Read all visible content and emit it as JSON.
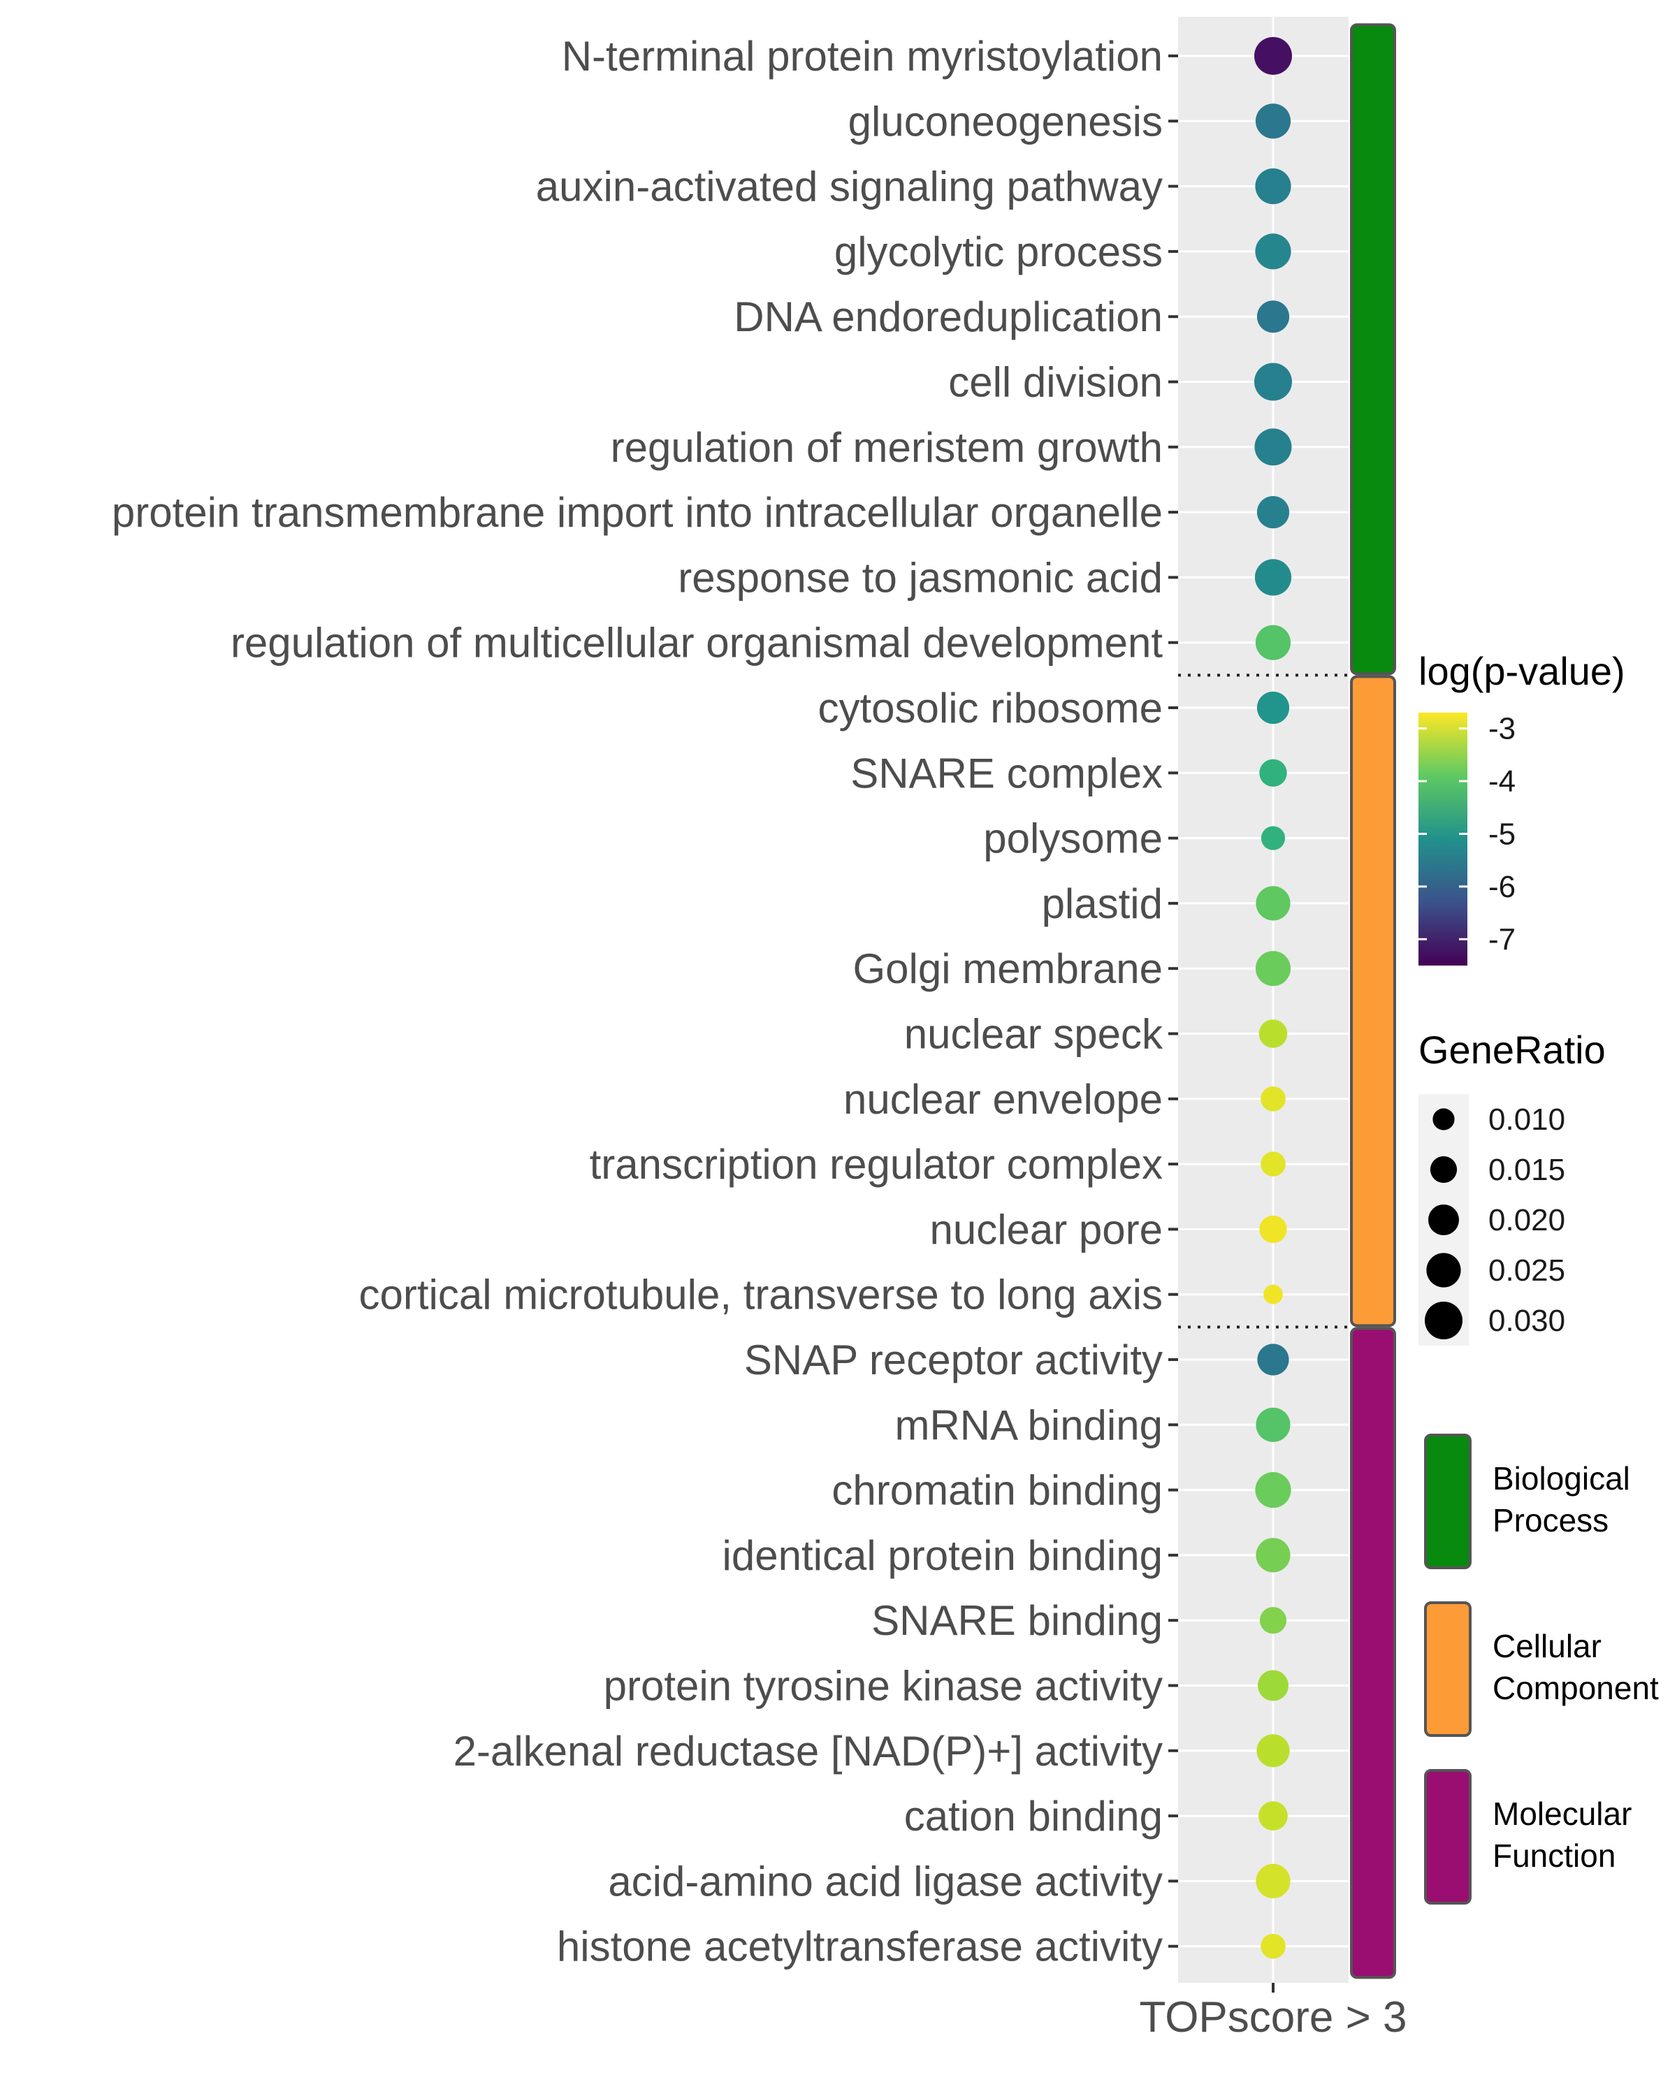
{
  "chart_data": {
    "type": "scatter",
    "xlabel": "TOPscore > 3",
    "terms": [
      {
        "label": "N-terminal protein myristoylation",
        "category": "Biological Process",
        "log_p": -7.3,
        "gene_ratio": 0.03
      },
      {
        "label": "gluconeogenesis",
        "category": "Biological Process",
        "log_p": -5.6,
        "gene_ratio": 0.026
      },
      {
        "label": "auxin-activated signaling pathway",
        "category": "Biological Process",
        "log_p": -5.4,
        "gene_ratio": 0.027
      },
      {
        "label": "glycolytic process",
        "category": "Biological Process",
        "log_p": -5.3,
        "gene_ratio": 0.027
      },
      {
        "label": "DNA endoreduplication",
        "category": "Biological Process",
        "log_p": -5.6,
        "gene_ratio": 0.022
      },
      {
        "label": "cell division",
        "category": "Biological Process",
        "log_p": -5.4,
        "gene_ratio": 0.03
      },
      {
        "label": "regulation of meristem growth",
        "category": "Biological Process",
        "log_p": -5.4,
        "gene_ratio": 0.029
      },
      {
        "label": "protein transmembrane import into intracellular organelle",
        "category": "Biological Process",
        "log_p": -5.4,
        "gene_ratio": 0.022
      },
      {
        "label": "response to jasmonic acid",
        "category": "Biological Process",
        "log_p": -5.2,
        "gene_ratio": 0.028
      },
      {
        "label": "regulation of multicellular organismal development",
        "category": "Biological Process",
        "log_p": -4.0,
        "gene_ratio": 0.026
      },
      {
        "label": "cytosolic ribosome",
        "category": "Cellular Component",
        "log_p": -5.0,
        "gene_ratio": 0.022
      },
      {
        "label": "SNARE complex",
        "category": "Cellular Component",
        "log_p": -4.4,
        "gene_ratio": 0.016
      },
      {
        "label": "polysome",
        "category": "Cellular Component",
        "log_p": -4.4,
        "gene_ratio": 0.012
      },
      {
        "label": "plastid",
        "category": "Cellular Component",
        "log_p": -3.9,
        "gene_ratio": 0.025
      },
      {
        "label": "Golgi membrane",
        "category": "Cellular Component",
        "log_p": -3.8,
        "gene_ratio": 0.026
      },
      {
        "label": "nuclear speck",
        "category": "Cellular Component",
        "log_p": -3.2,
        "gene_ratio": 0.017
      },
      {
        "label": "nuclear envelope",
        "category": "Cellular Component",
        "log_p": -2.9,
        "gene_ratio": 0.013
      },
      {
        "label": "transcription regulator complex",
        "category": "Cellular Component",
        "log_p": -2.9,
        "gene_ratio": 0.013
      },
      {
        "label": "nuclear pore",
        "category": "Cellular Component",
        "log_p": -2.8,
        "gene_ratio": 0.016
      },
      {
        "label": "cortical microtubule, transverse to long axis",
        "category": "Cellular Component",
        "log_p": -2.8,
        "gene_ratio": 0.008
      },
      {
        "label": "SNAP receptor activity",
        "category": "Molecular Function",
        "log_p": -5.6,
        "gene_ratio": 0.021
      },
      {
        "label": "mRNA binding",
        "category": "Molecular Function",
        "log_p": -4.0,
        "gene_ratio": 0.025
      },
      {
        "label": "chromatin binding",
        "category": "Molecular Function",
        "log_p": -3.8,
        "gene_ratio": 0.027
      },
      {
        "label": "identical protein binding",
        "category": "Molecular Function",
        "log_p": -3.7,
        "gene_ratio": 0.025
      },
      {
        "label": "SNARE binding",
        "category": "Molecular Function",
        "log_p": -3.6,
        "gene_ratio": 0.015
      },
      {
        "label": "protein tyrosine kinase activity",
        "category": "Molecular Function",
        "log_p": -3.4,
        "gene_ratio": 0.02
      },
      {
        "label": "2-alkenal reductase [NAD(P)+] activity",
        "category": "Molecular Function",
        "log_p": -3.2,
        "gene_ratio": 0.023
      },
      {
        "label": "cation binding",
        "category": "Molecular Function",
        "log_p": -3.1,
        "gene_ratio": 0.018
      },
      {
        "label": "acid-amino acid ligase activity",
        "category": "Molecular Function",
        "log_p": -3.0,
        "gene_ratio": 0.025
      },
      {
        "label": "histone acetyltransferase activity",
        "category": "Molecular Function",
        "log_p": -2.9,
        "gene_ratio": 0.013
      }
    ],
    "color_legend": {
      "title": "log(p-value)",
      "ticks": [
        -3,
        -4,
        -5,
        -6,
        -7
      ],
      "tick_labels": [
        "-3",
        "-4",
        "-5",
        "-6",
        "-7"
      ],
      "range": [
        -7.5,
        -2.7
      ],
      "palette": "viridis"
    },
    "size_legend": {
      "title": "GeneRatio",
      "values": [
        0.01,
        0.015,
        0.02,
        0.025,
        0.03
      ],
      "labels": [
        "0.010",
        "0.015",
        "0.020",
        "0.025",
        "0.030"
      ],
      "color": "#000000"
    },
    "categories": [
      {
        "name": "Biological Process",
        "lines": [
          "Biological",
          "Process"
        ],
        "color": "#078a0d",
        "count": 10
      },
      {
        "name": "Cellular Component",
        "lines": [
          "Cellular",
          "Component"
        ],
        "color": "#fd9b37",
        "count": 10
      },
      {
        "name": "Molecular Function",
        "lines": [
          "Molecular",
          "Function"
        ],
        "color": "#9a0e71",
        "count": 10
      }
    ],
    "panel_background": "#ebebeb",
    "grid": true
  }
}
